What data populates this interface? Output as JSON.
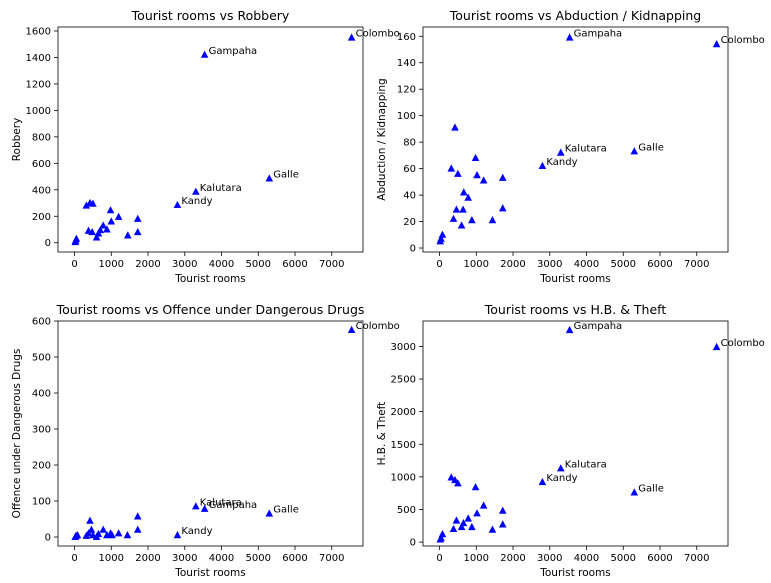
{
  "chart_data": [
    {
      "type": "scatter",
      "title": "Tourist rooms vs Robbery",
      "xlabel": "Tourist rooms",
      "ylabel": "Robbery",
      "xlim": [
        -450,
        7850
      ],
      "ylim": [
        -70,
        1630
      ],
      "xticks": [
        0,
        1000,
        2000,
        3000,
        4000,
        5000,
        6000,
        7000
      ],
      "yticks": [
        0,
        200,
        400,
        600,
        800,
        1000,
        1200,
        1400,
        1600
      ],
      "marker_color": "#0000ff",
      "points": [
        {
          "x": 20,
          "y": 5
        },
        {
          "x": 30,
          "y": 15
        },
        {
          "x": 50,
          "y": 30
        },
        {
          "x": 320,
          "y": 280
        },
        {
          "x": 380,
          "y": 90
        },
        {
          "x": 420,
          "y": 300
        },
        {
          "x": 500,
          "y": 295
        },
        {
          "x": 480,
          "y": 80
        },
        {
          "x": 600,
          "y": 40
        },
        {
          "x": 650,
          "y": 70
        },
        {
          "x": 700,
          "y": 95
        },
        {
          "x": 780,
          "y": 130
        },
        {
          "x": 880,
          "y": 100
        },
        {
          "x": 980,
          "y": 245
        },
        {
          "x": 1000,
          "y": 160
        },
        {
          "x": 1200,
          "y": 195
        },
        {
          "x": 1450,
          "y": 55
        },
        {
          "x": 1720,
          "y": 80
        },
        {
          "x": 1720,
          "y": 180
        },
        {
          "x": 2800,
          "y": 285,
          "label": "Kandy"
        },
        {
          "x": 3300,
          "y": 385,
          "label": "Kalutara"
        },
        {
          "x": 3540,
          "y": 1420,
          "label": "Gampaha"
        },
        {
          "x": 5300,
          "y": 485,
          "label": "Galle"
        },
        {
          "x": 7540,
          "y": 1550,
          "label": "Colombo"
        }
      ]
    },
    {
      "type": "scatter",
      "title": "Tourist rooms vs Abduction / Kidnapping",
      "xlabel": "Tourist rooms",
      "ylabel": "Abduction / Kidnapping",
      "xlim": [
        -450,
        7850
      ],
      "ylim": [
        -3,
        167
      ],
      "xticks": [
        0,
        1000,
        2000,
        3000,
        4000,
        5000,
        6000,
        7000
      ],
      "yticks": [
        0,
        20,
        40,
        60,
        80,
        100,
        120,
        140,
        160
      ],
      "marker_color": "#0000ff",
      "points": [
        {
          "x": 20,
          "y": 5
        },
        {
          "x": 40,
          "y": 7
        },
        {
          "x": 80,
          "y": 10
        },
        {
          "x": 320,
          "y": 60
        },
        {
          "x": 380,
          "y": 22
        },
        {
          "x": 420,
          "y": 91
        },
        {
          "x": 460,
          "y": 29
        },
        {
          "x": 500,
          "y": 56
        },
        {
          "x": 600,
          "y": 17
        },
        {
          "x": 640,
          "y": 29
        },
        {
          "x": 660,
          "y": 42
        },
        {
          "x": 780,
          "y": 38
        },
        {
          "x": 880,
          "y": 21
        },
        {
          "x": 980,
          "y": 68
        },
        {
          "x": 1020,
          "y": 55
        },
        {
          "x": 1200,
          "y": 51
        },
        {
          "x": 1440,
          "y": 21
        },
        {
          "x": 1720,
          "y": 30
        },
        {
          "x": 1720,
          "y": 53
        },
        {
          "x": 2800,
          "y": 62,
          "label": "Kandy"
        },
        {
          "x": 3300,
          "y": 72,
          "label": "Kalutara"
        },
        {
          "x": 3540,
          "y": 159,
          "label": "Gampaha"
        },
        {
          "x": 5300,
          "y": 73,
          "label": "Galle"
        },
        {
          "x": 7540,
          "y": 154,
          "label": "Colombo"
        }
      ]
    },
    {
      "type": "scatter",
      "title": "Tourist rooms vs Offence under Dangerous Drugs",
      "xlabel": "Tourist rooms",
      "ylabel": "Offence under Dangerous Drugs",
      "xlim": [
        -450,
        7850
      ],
      "ylim": [
        -25,
        600
      ],
      "xticks": [
        0,
        1000,
        2000,
        3000,
        4000,
        5000,
        6000,
        7000
      ],
      "yticks": [
        0,
        100,
        200,
        300,
        400,
        500,
        600
      ],
      "marker_color": "#0000ff",
      "points": [
        {
          "x": 20,
          "y": 0
        },
        {
          "x": 40,
          "y": 3
        },
        {
          "x": 80,
          "y": 5
        },
        {
          "x": 320,
          "y": 3
        },
        {
          "x": 380,
          "y": 10
        },
        {
          "x": 420,
          "y": 45
        },
        {
          "x": 460,
          "y": 20
        },
        {
          "x": 500,
          "y": 5
        },
        {
          "x": 600,
          "y": 0
        },
        {
          "x": 650,
          "y": 8
        },
        {
          "x": 780,
          "y": 20
        },
        {
          "x": 880,
          "y": 5
        },
        {
          "x": 980,
          "y": 10
        },
        {
          "x": 1020,
          "y": 5
        },
        {
          "x": 1200,
          "y": 10
        },
        {
          "x": 1440,
          "y": 5
        },
        {
          "x": 1720,
          "y": 20
        },
        {
          "x": 1720,
          "y": 57
        },
        {
          "x": 2800,
          "y": 5,
          "label": "Kandy"
        },
        {
          "x": 3300,
          "y": 85,
          "label": "Kalutara"
        },
        {
          "x": 3540,
          "y": 78,
          "label": "Gampaha"
        },
        {
          "x": 5300,
          "y": 65,
          "label": "Galle"
        },
        {
          "x": 7540,
          "y": 575,
          "label": "Colombo"
        }
      ]
    },
    {
      "type": "scatter",
      "title": "Tourist rooms vs H.B. & Theft",
      "xlabel": "Tourist rooms",
      "ylabel": "H.B. & Theft",
      "xlim": [
        -450,
        7850
      ],
      "ylim": [
        -60,
        3390
      ],
      "xticks": [
        0,
        1000,
        2000,
        3000,
        4000,
        5000,
        6000,
        7000
      ],
      "yticks": [
        0,
        500,
        1000,
        1500,
        2000,
        2500,
        3000
      ],
      "marker_color": "#0000ff",
      "points": [
        {
          "x": 20,
          "y": 40
        },
        {
          "x": 40,
          "y": 60
        },
        {
          "x": 80,
          "y": 120
        },
        {
          "x": 320,
          "y": 990
        },
        {
          "x": 380,
          "y": 200
        },
        {
          "x": 420,
          "y": 950
        },
        {
          "x": 460,
          "y": 330
        },
        {
          "x": 500,
          "y": 900
        },
        {
          "x": 600,
          "y": 230
        },
        {
          "x": 650,
          "y": 290
        },
        {
          "x": 780,
          "y": 360
        },
        {
          "x": 880,
          "y": 230
        },
        {
          "x": 980,
          "y": 840
        },
        {
          "x": 1020,
          "y": 440
        },
        {
          "x": 1200,
          "y": 560
        },
        {
          "x": 1440,
          "y": 190
        },
        {
          "x": 1720,
          "y": 270
        },
        {
          "x": 1720,
          "y": 480
        },
        {
          "x": 2800,
          "y": 920,
          "label": "Kandy"
        },
        {
          "x": 3300,
          "y": 1130,
          "label": "Kalutara"
        },
        {
          "x": 3540,
          "y": 3250,
          "label": "Gampaha"
        },
        {
          "x": 5300,
          "y": 760,
          "label": "Galle"
        },
        {
          "x": 7540,
          "y": 2990,
          "label": "Colombo"
        }
      ]
    }
  ]
}
